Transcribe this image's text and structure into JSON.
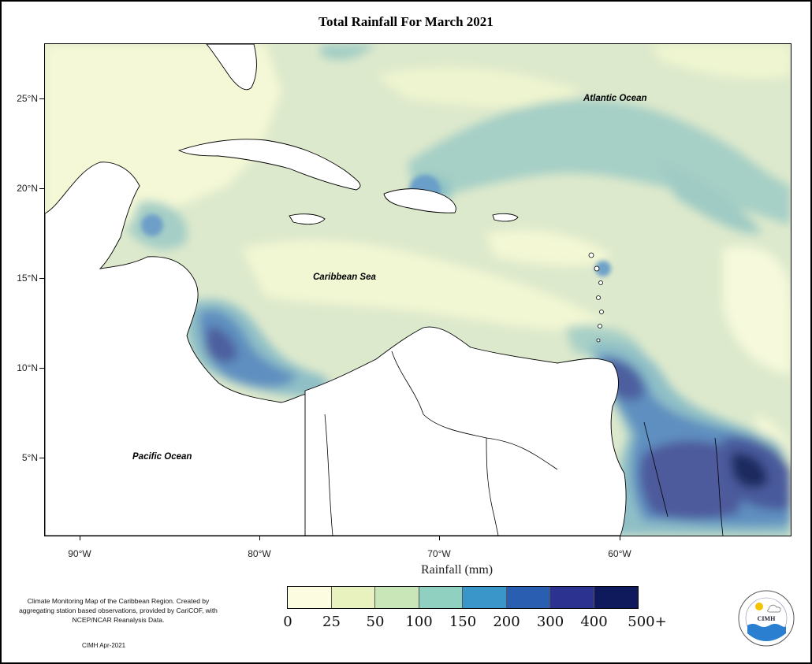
{
  "title": "Total Rainfall For March 2021",
  "map": {
    "labels": {
      "atlantic": "Atlantic Ocean",
      "caribbean": "Caribbean Sea",
      "pacific": "Pacific Ocean"
    },
    "lat_ticks": [
      "25°N",
      "20°N",
      "15°N",
      "10°N",
      "5°N"
    ],
    "lon_ticks": [
      "90°W",
      "80°W",
      "70°W",
      "60°W"
    ]
  },
  "legend": {
    "title": "Rainfall (mm)",
    "bins": [
      {
        "color": "#fcfde0",
        "label": "0"
      },
      {
        "color": "#e8f2be",
        "label": "25"
      },
      {
        "color": "#c8e6b8",
        "label": "50"
      },
      {
        "color": "#8fd0c0",
        "label": "100"
      },
      {
        "color": "#3a95c8",
        "label": "150"
      },
      {
        "color": "#2a5eb0",
        "label": "200"
      },
      {
        "color": "#2c3290",
        "label": "300"
      },
      {
        "color": "#0e1a5c",
        "label": "400"
      }
    ],
    "tick_labels": [
      "0",
      "25",
      "50",
      "100",
      "150",
      "200",
      "300",
      "400",
      "500+"
    ]
  },
  "footer": {
    "description": "Climate Monitoring Map of the Caribbean Region. Created by aggregating station based observations, provided by CariCOF, with NCEP/NCAR Reanalysis Data.",
    "credit": "CIMH Apr-2021",
    "logo_text": "CIMH"
  }
}
